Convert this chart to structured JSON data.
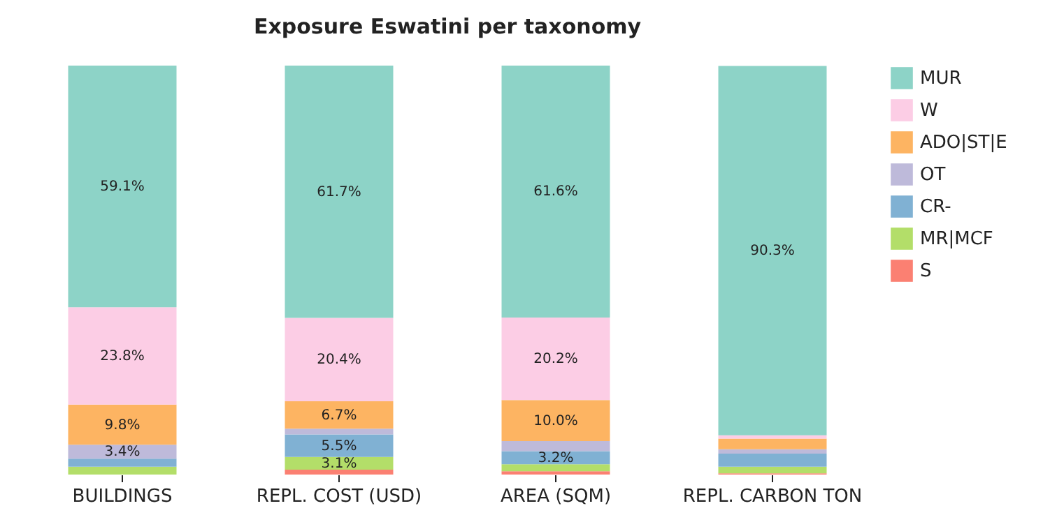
{
  "chart_data": {
    "type": "bar",
    "title": "Exposure Eswatini per taxonomy",
    "categories": [
      "BUILDINGS",
      "REPL. COST (USD)",
      "AREA (SQM)",
      "REPL. CARBON TON"
    ],
    "stacked": true,
    "legend": "right",
    "series": [
      {
        "name": "S",
        "color": "#fb8072",
        "values": [
          0,
          1.2,
          0.8,
          0.3
        ],
        "value_labels": [
          null,
          null,
          null,
          null
        ]
      },
      {
        "name": "MR|MCF",
        "color": "#b3de69",
        "values": [
          1.9,
          3.1,
          1.7,
          1.6
        ],
        "value_labels": [
          null,
          "3.1%",
          null,
          null
        ]
      },
      {
        "name": "CR-",
        "color": "#80b1d3",
        "values": [
          2.0,
          5.5,
          3.2,
          3.2
        ],
        "value_labels": [
          null,
          "5.5%",
          "3.2%",
          null
        ]
      },
      {
        "name": "OT",
        "color": "#bebada",
        "values": [
          3.4,
          1.4,
          2.5,
          1.1
        ],
        "value_labels": [
          "3.4%",
          null,
          null,
          null
        ]
      },
      {
        "name": "ADO|ST|E",
        "color": "#fdb462",
        "values": [
          9.8,
          6.7,
          10.0,
          2.6
        ],
        "value_labels": [
          "9.8%",
          "6.7%",
          "10.0%",
          null
        ]
      },
      {
        "name": "W",
        "color": "#fccde5",
        "values": [
          23.8,
          20.4,
          20.2,
          0.8
        ],
        "value_labels": [
          "23.8%",
          "20.4%",
          "20.2%",
          null
        ]
      },
      {
        "name": "MUR",
        "color": "#8dd3c7",
        "values": [
          59.1,
          61.7,
          61.6,
          90.3
        ],
        "value_labels": [
          "59.1%",
          "61.7%",
          "61.6%",
          "90.3%"
        ]
      }
    ]
  }
}
